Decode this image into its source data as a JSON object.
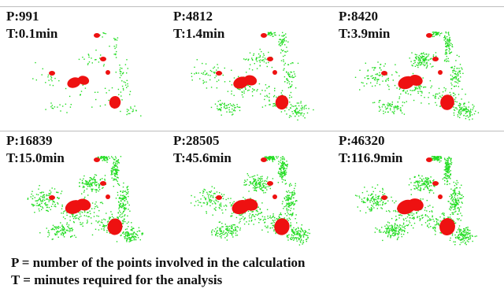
{
  "panels": [
    {
      "p_label": "P:991",
      "t_label": "T:0.1min",
      "density": 0.15
    },
    {
      "p_label": "P:4812",
      "t_label": "T:1.4min",
      "density": 0.45
    },
    {
      "p_label": "P:8420",
      "t_label": "T:3.9min",
      "density": 0.65
    },
    {
      "p_label": "P:16839",
      "t_label": "T:15.0min",
      "density": 0.85
    },
    {
      "p_label": "P:28505",
      "t_label": "T:45.6min",
      "density": 0.92
    },
    {
      "p_label": "P:46320",
      "t_label": "T:116.9min",
      "density": 1.0
    }
  ],
  "legend": {
    "p_line": "P = number of the points involved in the calculation",
    "t_line": "T = minutes required for the analysis"
  },
  "colors": {
    "points": "#22dd22",
    "blobs": "#ee1111",
    "text": "#111111",
    "rule": "#bdbdbd"
  }
}
